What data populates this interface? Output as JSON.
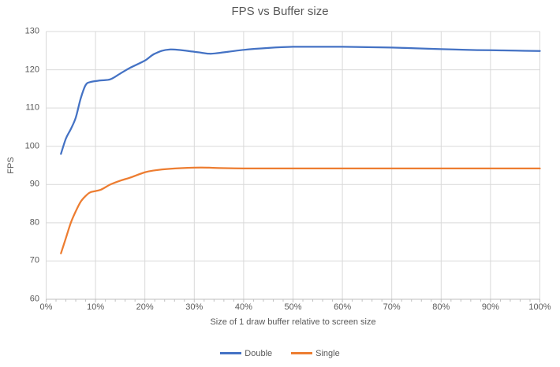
{
  "chart_data": {
    "type": "line",
    "title": "FPS vs Buffer size",
    "xlabel": "Size of 1 draw buffer relative to screen size",
    "ylabel": "FPS",
    "xlim": [
      0,
      100
    ],
    "ylim": [
      60,
      130
    ],
    "grid": true,
    "line_style": "smooth",
    "legend_position": "bottom",
    "x_unit": "percent",
    "x_ticks": [
      {
        "value": 0,
        "label": "0%"
      },
      {
        "value": 10,
        "label": "10%"
      },
      {
        "value": 20,
        "label": "20%"
      },
      {
        "value": 30,
        "label": "30%"
      },
      {
        "value": 40,
        "label": "40%"
      },
      {
        "value": 50,
        "label": "50%"
      },
      {
        "value": 60,
        "label": "60%"
      },
      {
        "value": 70,
        "label": "70%"
      },
      {
        "value": 80,
        "label": "80%"
      },
      {
        "value": 90,
        "label": "90%"
      },
      {
        "value": 100,
        "label": "100%"
      }
    ],
    "x_minor_tick_step": 2,
    "y_ticks": [
      {
        "value": 60,
        "label": "60"
      },
      {
        "value": 70,
        "label": "70"
      },
      {
        "value": 80,
        "label": "80"
      },
      {
        "value": 90,
        "label": "90"
      },
      {
        "value": 100,
        "label": "100"
      },
      {
        "value": 110,
        "label": "110"
      },
      {
        "value": 120,
        "label": "120"
      },
      {
        "value": 130,
        "label": "130"
      }
    ],
    "x": [
      3,
      4,
      5,
      6,
      7,
      8,
      9,
      11,
      13,
      15,
      17,
      20,
      22,
      25,
      30,
      33,
      35,
      40,
      45,
      50,
      55,
      60,
      65,
      70,
      75,
      80,
      85,
      90,
      95,
      100
    ],
    "series": [
      {
        "name": "Double",
        "color": "#4472C4",
        "values": [
          98,
          102,
          104.5,
          107.5,
          112.5,
          116,
          116.8,
          117.2,
          117.5,
          119,
          120.5,
          122.4,
          124.2,
          125.3,
          124.7,
          124.2,
          124.4,
          125.2,
          125.7,
          126,
          126,
          126,
          125.9,
          125.8,
          125.6,
          125.4,
          125.2,
          125.1,
          125,
          124.9
        ]
      },
      {
        "name": "Single",
        "color": "#ED7D31",
        "values": [
          72,
          76,
          80,
          83,
          85.5,
          87,
          88,
          88.6,
          90,
          91,
          91.8,
          93.2,
          93.7,
          94.1,
          94.4,
          94.4,
          94.3,
          94.2,
          94.2,
          94.2,
          94.2,
          94.2,
          94.2,
          94.2,
          94.2,
          94.2,
          94.2,
          94.2,
          94.2,
          94.2
        ]
      }
    ],
    "colors": {
      "gridline": "#D9D9D9",
      "axis_line": "#BFBFBF",
      "text": "#595959",
      "background": "#FFFFFF"
    }
  }
}
